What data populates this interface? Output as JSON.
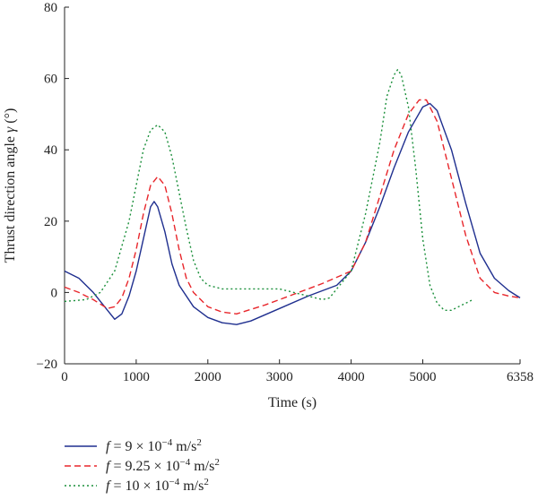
{
  "chart_data": {
    "type": "line",
    "title": "",
    "xlabel": "Time (s)",
    "ylabel_parts": {
      "text": "Thrust direction angle ",
      "symbol": "γ",
      "unit": " (°)"
    },
    "xlim": [
      0,
      6358
    ],
    "ylim": [
      -20,
      80
    ],
    "x_ticks": [
      0,
      1000,
      2000,
      3000,
      4000,
      5000,
      6358
    ],
    "x_tick_labels": [
      "0",
      "1000",
      "2000",
      "3000",
      "4000",
      "5000",
      "6358"
    ],
    "y_ticks": [
      -20,
      0,
      20,
      40,
      60,
      80
    ],
    "y_tick_labels": [
      "−20",
      "0",
      "20",
      "40",
      "60",
      "80"
    ],
    "grid": false,
    "legend_position": "bottom-left",
    "series": [
      {
        "name": "f = 9 × 10−4 m/s2",
        "legend": {
          "f": "f",
          "eq": " = 9 × 10",
          "exp": "−4",
          "unit": " m/s",
          "unitexp": "2"
        },
        "color": "#1f2f8f",
        "dash": "solid",
        "points": [
          [
            0,
            6
          ],
          [
            200,
            4
          ],
          [
            400,
            0
          ],
          [
            600,
            -5
          ],
          [
            700,
            -7.5
          ],
          [
            800,
            -6
          ],
          [
            900,
            -1
          ],
          [
            1000,
            6
          ],
          [
            1100,
            15
          ],
          [
            1200,
            24
          ],
          [
            1250,
            25.5
          ],
          [
            1300,
            24
          ],
          [
            1400,
            17
          ],
          [
            1500,
            8
          ],
          [
            1600,
            2
          ],
          [
            1800,
            -4
          ],
          [
            2000,
            -7
          ],
          [
            2200,
            -8.5
          ],
          [
            2400,
            -9
          ],
          [
            2600,
            -8
          ],
          [
            3000,
            -4.5
          ],
          [
            3400,
            -1
          ],
          [
            3800,
            2
          ],
          [
            4000,
            6
          ],
          [
            4200,
            14
          ],
          [
            4400,
            24
          ],
          [
            4600,
            35
          ],
          [
            4800,
            45
          ],
          [
            5000,
            52
          ],
          [
            5100,
            53
          ],
          [
            5200,
            51
          ],
          [
            5400,
            40
          ],
          [
            5600,
            25
          ],
          [
            5800,
            11
          ],
          [
            6000,
            4
          ],
          [
            6200,
            0.5
          ],
          [
            6358,
            -1.5
          ]
        ]
      },
      {
        "name": "f = 9.25 × 10−4 m/s2",
        "legend": {
          "f": "f",
          "eq": " = 9.25 × 10",
          "exp": "−4",
          "unit": " m/s",
          "unitexp": "2"
        },
        "color": "#e8262b",
        "dash": "7,4",
        "points": [
          [
            0,
            1.5
          ],
          [
            200,
            0
          ],
          [
            400,
            -2
          ],
          [
            600,
            -4.5
          ],
          [
            700,
            -4
          ],
          [
            800,
            -1.5
          ],
          [
            900,
            4
          ],
          [
            1000,
            12
          ],
          [
            1100,
            22
          ],
          [
            1200,
            30
          ],
          [
            1300,
            32.5
          ],
          [
            1400,
            30
          ],
          [
            1500,
            22
          ],
          [
            1600,
            12
          ],
          [
            1700,
            4
          ],
          [
            1800,
            0
          ],
          [
            2000,
            -4
          ],
          [
            2200,
            -5.5
          ],
          [
            2400,
            -6
          ],
          [
            2800,
            -3.5
          ],
          [
            3200,
            -0.5
          ],
          [
            3600,
            2.5
          ],
          [
            4000,
            6
          ],
          [
            4200,
            14
          ],
          [
            4400,
            27
          ],
          [
            4600,
            40
          ],
          [
            4800,
            50
          ],
          [
            4950,
            54
          ],
          [
            5050,
            54
          ],
          [
            5200,
            48
          ],
          [
            5400,
            32
          ],
          [
            5600,
            16
          ],
          [
            5800,
            4
          ],
          [
            6000,
            0
          ],
          [
            6200,
            -1
          ],
          [
            6358,
            -1.5
          ]
        ]
      },
      {
        "name": "f = 10 × 10−4 m/s2",
        "legend": {
          "f": "f",
          "eq": " = 10 × 10",
          "exp": "−4",
          "unit": " m/s",
          "unitexp": "2"
        },
        "color": "#1a8f3a",
        "dash": "2,3",
        "points": [
          [
            0,
            -2.5
          ],
          [
            300,
            -2
          ],
          [
            500,
            0
          ],
          [
            700,
            6
          ],
          [
            900,
            20
          ],
          [
            1000,
            30
          ],
          [
            1100,
            40
          ],
          [
            1200,
            45.5
          ],
          [
            1300,
            47
          ],
          [
            1400,
            45
          ],
          [
            1500,
            38
          ],
          [
            1600,
            28
          ],
          [
            1700,
            18
          ],
          [
            1800,
            9
          ],
          [
            1900,
            4
          ],
          [
            2000,
            2
          ],
          [
            2200,
            1
          ],
          [
            2600,
            1
          ],
          [
            3000,
            1
          ],
          [
            3200,
            0
          ],
          [
            3400,
            -1
          ],
          [
            3600,
            -2
          ],
          [
            3700,
            -1.5
          ],
          [
            3800,
            1
          ],
          [
            4000,
            6
          ],
          [
            4200,
            22
          ],
          [
            4400,
            42
          ],
          [
            4500,
            55
          ],
          [
            4600,
            61
          ],
          [
            4650,
            62.5
          ],
          [
            4700,
            61
          ],
          [
            4800,
            52
          ],
          [
            4900,
            35
          ],
          [
            5000,
            15
          ],
          [
            5100,
            2
          ],
          [
            5200,
            -3
          ],
          [
            5300,
            -5
          ],
          [
            5400,
            -5
          ],
          [
            5500,
            -4
          ],
          [
            5700,
            -2
          ]
        ]
      }
    ]
  }
}
